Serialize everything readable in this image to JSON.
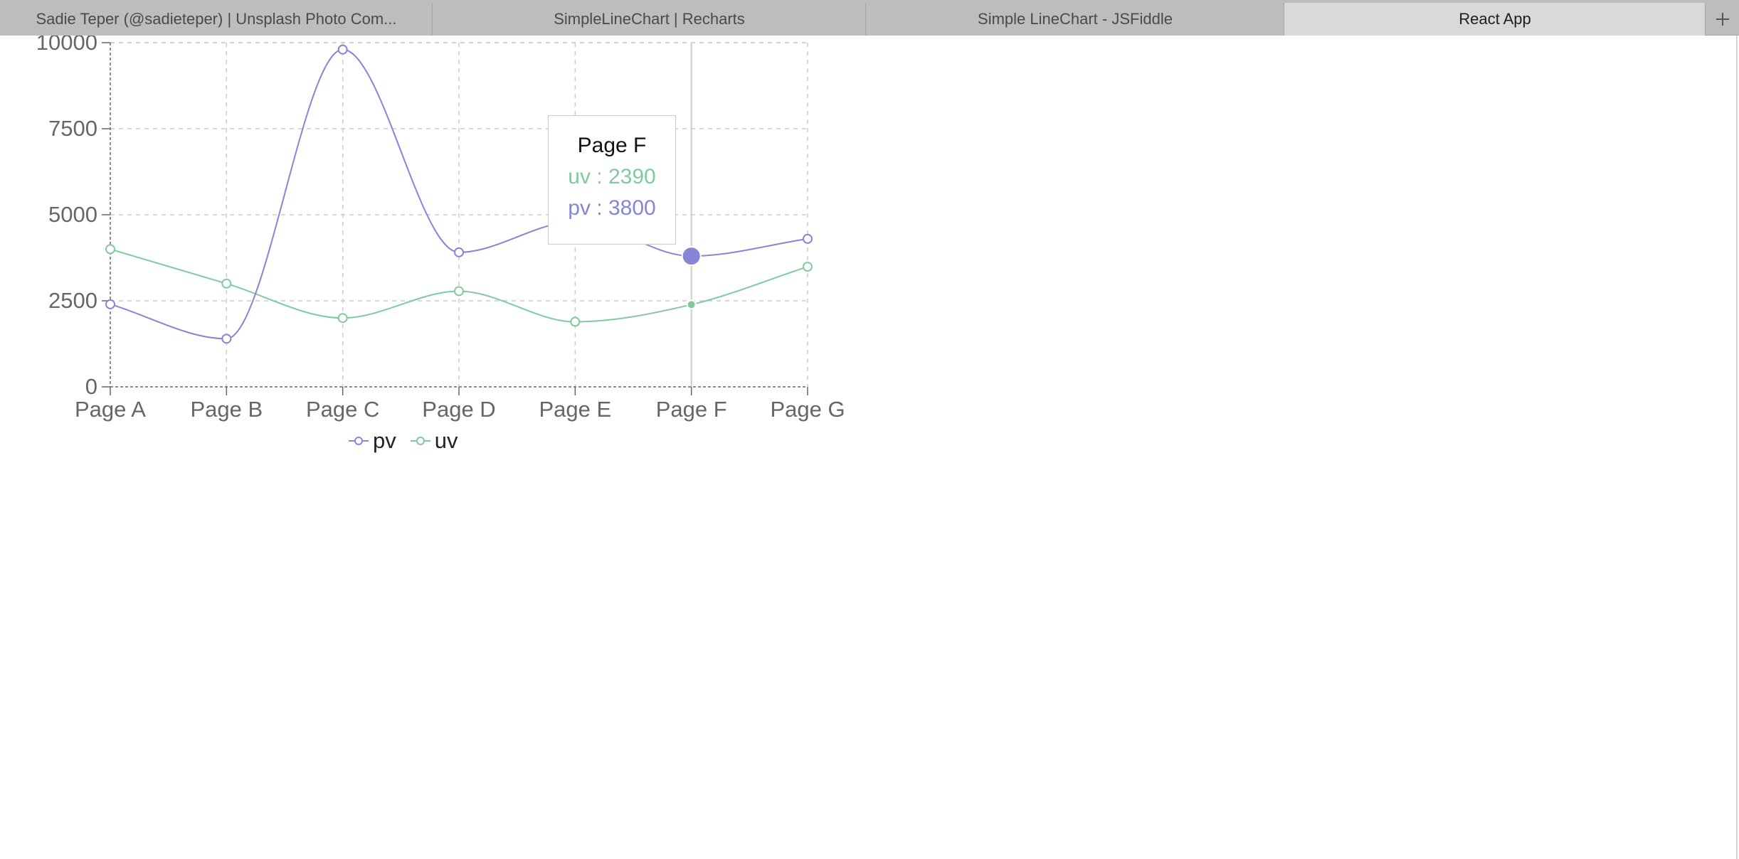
{
  "tabs": [
    {
      "label": "Sadie Teper (@sadieteper) | Unsplash Photo Com...",
      "active": false
    },
    {
      "label": "SimpleLineChart | Recharts",
      "active": false
    },
    {
      "label": "Simple LineChart - JSFiddle",
      "active": false
    },
    {
      "label": "React App",
      "active": true
    }
  ],
  "new_tab_icon": "plus-icon",
  "chart_data": {
    "type": "line",
    "categories": [
      "Page A",
      "Page B",
      "Page C",
      "Page D",
      "Page E",
      "Page F",
      "Page G"
    ],
    "series": [
      {
        "name": "pv",
        "color": "#8884d8",
        "values": [
          2400,
          1398,
          9800,
          3908,
          4800,
          3800,
          4300
        ]
      },
      {
        "name": "uv",
        "color": "#82ca9d",
        "values": [
          4000,
          3000,
          2000,
          2780,
          1890,
          2390,
          3490
        ]
      }
    ],
    "yticks": [
      "0",
      "2500",
      "5000",
      "7500",
      "10000"
    ],
    "ylim": [
      0,
      10000
    ],
    "grid": true,
    "legend_position": "bottom",
    "active_index": 5,
    "tooltip": {
      "label": "Page F",
      "items": [
        {
          "text": "uv : 2390",
          "color": "#82ca9d"
        },
        {
          "text": "pv : 3800",
          "color": "#8884d8"
        }
      ]
    }
  }
}
